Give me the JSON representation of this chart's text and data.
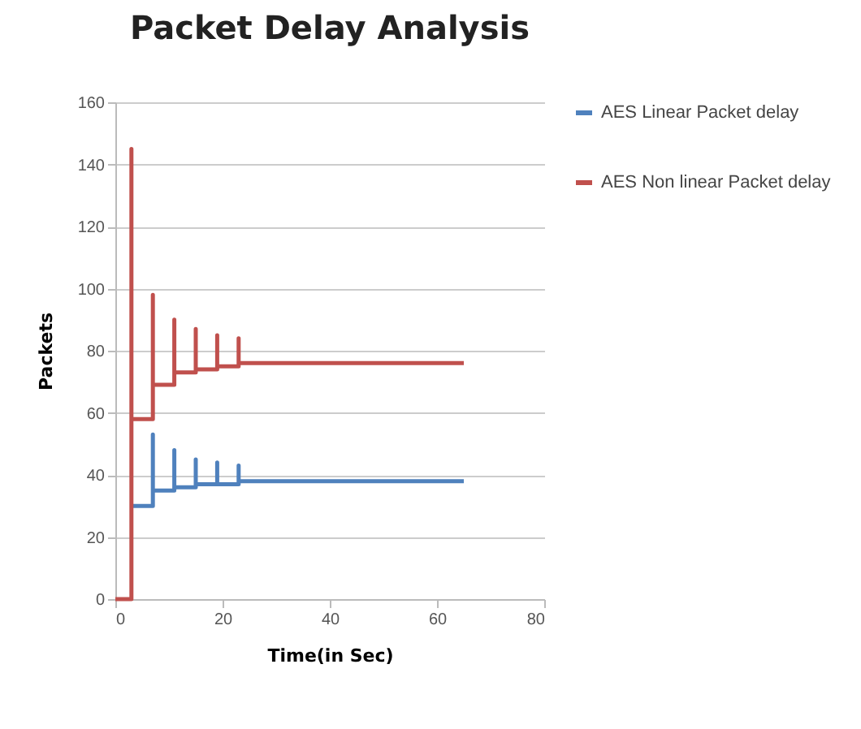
{
  "chart_data": {
    "type": "line",
    "title": "Packet Delay Analysis",
    "xlabel": "Time(in Sec)",
    "ylabel": "Packets",
    "xlim": [
      0,
      80
    ],
    "xticks": [
      0,
      20,
      40,
      60,
      80
    ],
    "ylim": [
      0,
      160
    ],
    "yticks": [
      0,
      20,
      40,
      60,
      80,
      100,
      120,
      140,
      160
    ],
    "grid": "y",
    "legend": "right",
    "marker": "none",
    "line_style": "solid",
    "series": [
      {
        "name": "AES Linear Packet delay",
        "color": "#4f81bd",
        "x": [
          3,
          7,
          7,
          7,
          11,
          11,
          11,
          15,
          15,
          15,
          19,
          19,
          19,
          23,
          23,
          23,
          65
        ],
        "values": [
          30,
          30,
          53,
          35,
          35,
          48,
          36,
          36,
          45,
          37,
          37,
          44,
          37,
          37,
          43,
          38,
          38
        ]
      },
      {
        "name": "AES Non linear Packet delay",
        "color": "#c0504d",
        "x": [
          0,
          3,
          3,
          3,
          7,
          7,
          7,
          11,
          11,
          11,
          15,
          15,
          15,
          19,
          19,
          19,
          23,
          23,
          23,
          65
        ],
        "values": [
          0,
          0,
          145,
          58,
          58,
          98,
          69,
          69,
          90,
          73,
          73,
          87,
          74,
          74,
          85,
          75,
          75,
          84,
          76,
          76
        ]
      }
    ]
  }
}
